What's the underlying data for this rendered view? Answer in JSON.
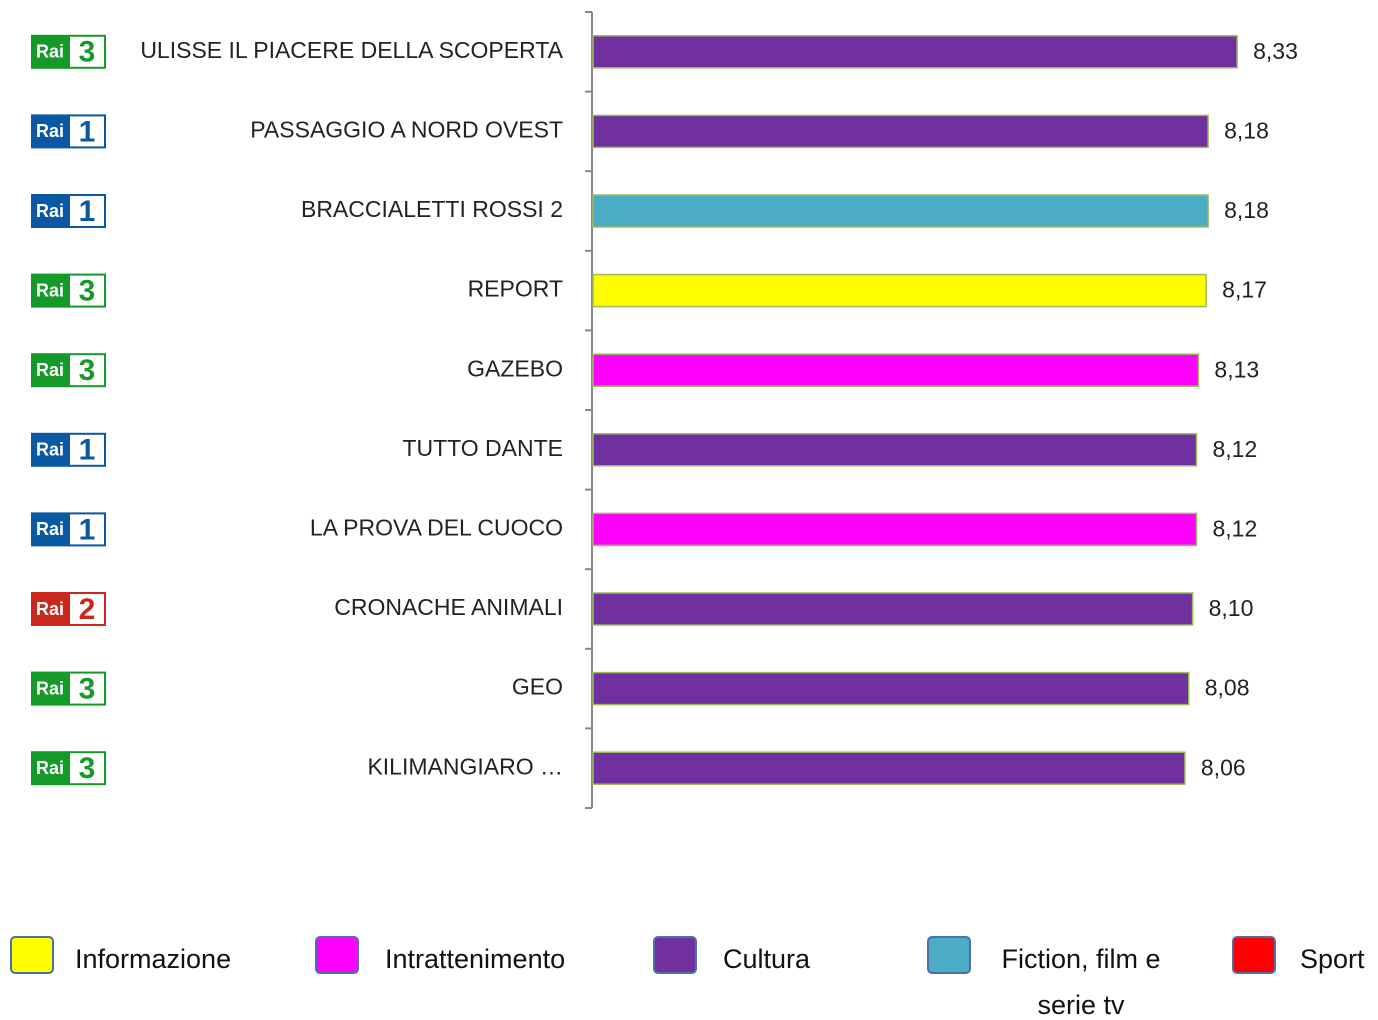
{
  "chart_data": {
    "type": "bar",
    "orientation": "horizontal",
    "categories": [
      "ULISSE IL PIACERE DELLA SCOPERTA",
      "PASSAGGIO A NORD OVEST",
      "BRACCIALETTI ROSSI 2",
      "REPORT",
      "GAZEBO",
      "TUTTO DANTE",
      "LA PROVA DEL CUOCO",
      "CRONACHE ANIMALI",
      "GEO",
      "KILIMANGIARO …"
    ],
    "values": [
      8.33,
      8.18,
      8.18,
      8.17,
      8.13,
      8.12,
      8.12,
      8.1,
      8.08,
      8.06
    ],
    "value_labels": [
      "8,33",
      "8,18",
      "8,18",
      "8,17",
      "8,13",
      "8,12",
      "8,12",
      "8,10",
      "8,08",
      "8,06"
    ],
    "colors": [
      "#7030a0",
      "#7030a0",
      "#4bacc6",
      "#ffff00",
      "#ff00ff",
      "#7030a0",
      "#ff00ff",
      "#7030a0",
      "#7030a0",
      "#7030a0"
    ],
    "channel_brand": "Rai",
    "channels": [
      3,
      1,
      1,
      3,
      3,
      1,
      1,
      2,
      3,
      3
    ],
    "channel_colors": {
      "1": "#0b58a3",
      "2": "#c8281e",
      "3": "#159a2a"
    },
    "xlim": [
      5,
      8.5
    ],
    "legend": [
      {
        "name": "Informazione",
        "color": "#ffff00"
      },
      {
        "name": "Intrattenimento",
        "color": "#ff00ff"
      },
      {
        "name": "Cultura",
        "color": "#7030a0"
      },
      {
        "name": "Fiction, film e serie tv",
        "color": "#4bacc6"
      },
      {
        "name": "Sport",
        "color": "#ff0000"
      }
    ]
  }
}
